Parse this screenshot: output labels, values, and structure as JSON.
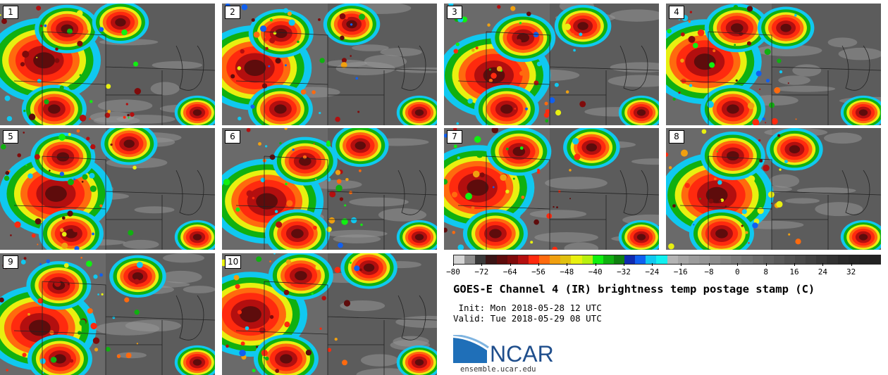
{
  "panels": [
    {
      "label": "1"
    },
    {
      "label": "2"
    },
    {
      "label": "3"
    },
    {
      "label": "4"
    },
    {
      "label": "5"
    },
    {
      "label": "6"
    },
    {
      "label": "7"
    },
    {
      "label": "8"
    },
    {
      "label": "9"
    },
    {
      "label": "10"
    }
  ],
  "colorbar": {
    "ticks": [
      "−80",
      "−72",
      "−64",
      "−56",
      "−48",
      "−40",
      "−32",
      "−24",
      "−16",
      "−8",
      "0",
      "8",
      "16",
      "24",
      "32"
    ],
    "tick_values": [
      -80,
      -72,
      -64,
      -56,
      -48,
      -40,
      -32,
      -24,
      -16,
      -8,
      0,
      8,
      16,
      24,
      32
    ],
    "min": -80,
    "max": 40,
    "colors": [
      "#d4d4d4",
      "#8c8c8c",
      "#3a3a3a",
      "#3a1515",
      "#5e0c0c",
      "#7f0b0b",
      "#b30f0f",
      "#ff2a0e",
      "#ff6a0e",
      "#f0a010",
      "#e0c010",
      "#e8f010",
      "#b8f010",
      "#10f010",
      "#10b010",
      "#108010",
      "#102ab0",
      "#1060f0",
      "#10c8f0",
      "#10f0f0",
      "#b4b4b4",
      "#a6a6a6",
      "#9c9c9c",
      "#969696",
      "#8c8c8c",
      "#828282",
      "#7a7a7a",
      "#727272",
      "#6a6a6a",
      "#626262",
      "#5a5a5a",
      "#525252",
      "#4a4a4a",
      "#424242",
      "#3a3a3a",
      "#323232",
      "#2a2a2a",
      "#262626",
      "#242424",
      "#222222"
    ]
  },
  "title": "GOES-E Channel 4 (IR) brightness temp postage stamp (C)",
  "init": " Init: Mon 2018-05-28 12 UTC",
  "valid": "Valid: Tue 2018-05-29 08 UTC",
  "logo": {
    "text": "NCAR",
    "color": "#1f4e8c"
  },
  "site": "ensemble.ucar.edu"
}
